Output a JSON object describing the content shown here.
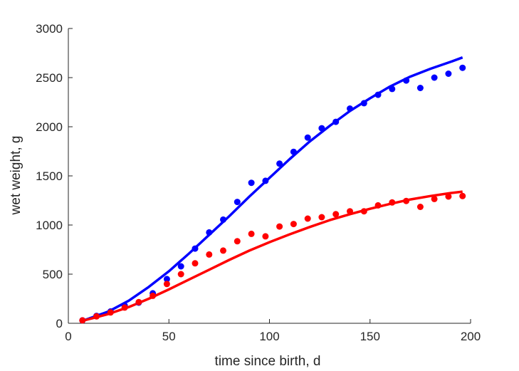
{
  "chart_data": {
    "type": "scatter",
    "xlabel": "time since birth, d",
    "ylabel": "wet weight, g",
    "xlim": [
      0,
      200
    ],
    "ylim": [
      0,
      3000
    ],
    "x_ticks": [
      "0",
      "50",
      "100",
      "150",
      "200"
    ],
    "y_ticks": [
      "0",
      "500",
      "1000",
      "1500",
      "2000",
      "2500",
      "3000"
    ],
    "grid": false,
    "legend": "none",
    "series": [
      {
        "color": "#0000ff",
        "points": [
          [
            7,
            30
          ],
          [
            14,
            75
          ],
          [
            21,
            120
          ],
          [
            28,
            180
          ],
          [
            35,
            210
          ],
          [
            42,
            305
          ],
          [
            49,
            450
          ],
          [
            56,
            580
          ],
          [
            63,
            760
          ],
          [
            70,
            925
          ],
          [
            77,
            1055
          ],
          [
            84,
            1235
          ],
          [
            91,
            1430
          ],
          [
            98,
            1450
          ],
          [
            105,
            1625
          ],
          [
            112,
            1745
          ],
          [
            119,
            1890
          ],
          [
            126,
            1985
          ],
          [
            133,
            2050
          ],
          [
            140,
            2185
          ],
          [
            147,
            2240
          ],
          [
            154,
            2325
          ],
          [
            161,
            2385
          ],
          [
            168,
            2470
          ],
          [
            175,
            2395
          ],
          [
            182,
            2500
          ],
          [
            189,
            2540
          ],
          [
            196,
            2600
          ]
        ],
        "fit": [
          [
            7,
            25
          ],
          [
            20,
            120
          ],
          [
            30,
            230
          ],
          [
            40,
            370
          ],
          [
            50,
            530
          ],
          [
            60,
            710
          ],
          [
            70,
            900
          ],
          [
            80,
            1090
          ],
          [
            90,
            1290
          ],
          [
            100,
            1480
          ],
          [
            110,
            1670
          ],
          [
            120,
            1850
          ],
          [
            130,
            2010
          ],
          [
            140,
            2160
          ],
          [
            150,
            2290
          ],
          [
            160,
            2410
          ],
          [
            170,
            2510
          ],
          [
            180,
            2590
          ],
          [
            190,
            2660
          ],
          [
            196,
            2705
          ]
        ]
      },
      {
        "color": "#ff0000",
        "points": [
          [
            7,
            30
          ],
          [
            14,
            70
          ],
          [
            21,
            110
          ],
          [
            28,
            160
          ],
          [
            35,
            215
          ],
          [
            42,
            280
          ],
          [
            49,
            400
          ],
          [
            56,
            500
          ],
          [
            63,
            610
          ],
          [
            70,
            700
          ],
          [
            77,
            740
          ],
          [
            84,
            835
          ],
          [
            91,
            910
          ],
          [
            98,
            885
          ],
          [
            105,
            985
          ],
          [
            112,
            1010
          ],
          [
            119,
            1065
          ],
          [
            126,
            1080
          ],
          [
            133,
            1110
          ],
          [
            140,
            1140
          ],
          [
            147,
            1140
          ],
          [
            154,
            1200
          ],
          [
            161,
            1230
          ],
          [
            168,
            1245
          ],
          [
            175,
            1185
          ],
          [
            182,
            1265
          ],
          [
            189,
            1290
          ],
          [
            196,
            1295
          ]
        ],
        "fit": [
          [
            7,
            25
          ],
          [
            20,
            95
          ],
          [
            30,
            165
          ],
          [
            40,
            250
          ],
          [
            50,
            345
          ],
          [
            60,
            445
          ],
          [
            70,
            545
          ],
          [
            80,
            645
          ],
          [
            90,
            740
          ],
          [
            100,
            825
          ],
          [
            110,
            905
          ],
          [
            120,
            980
          ],
          [
            130,
            1050
          ],
          [
            140,
            1110
          ],
          [
            150,
            1165
          ],
          [
            160,
            1215
          ],
          [
            170,
            1260
          ],
          [
            180,
            1295
          ],
          [
            190,
            1325
          ],
          [
            196,
            1340
          ]
        ]
      }
    ]
  }
}
